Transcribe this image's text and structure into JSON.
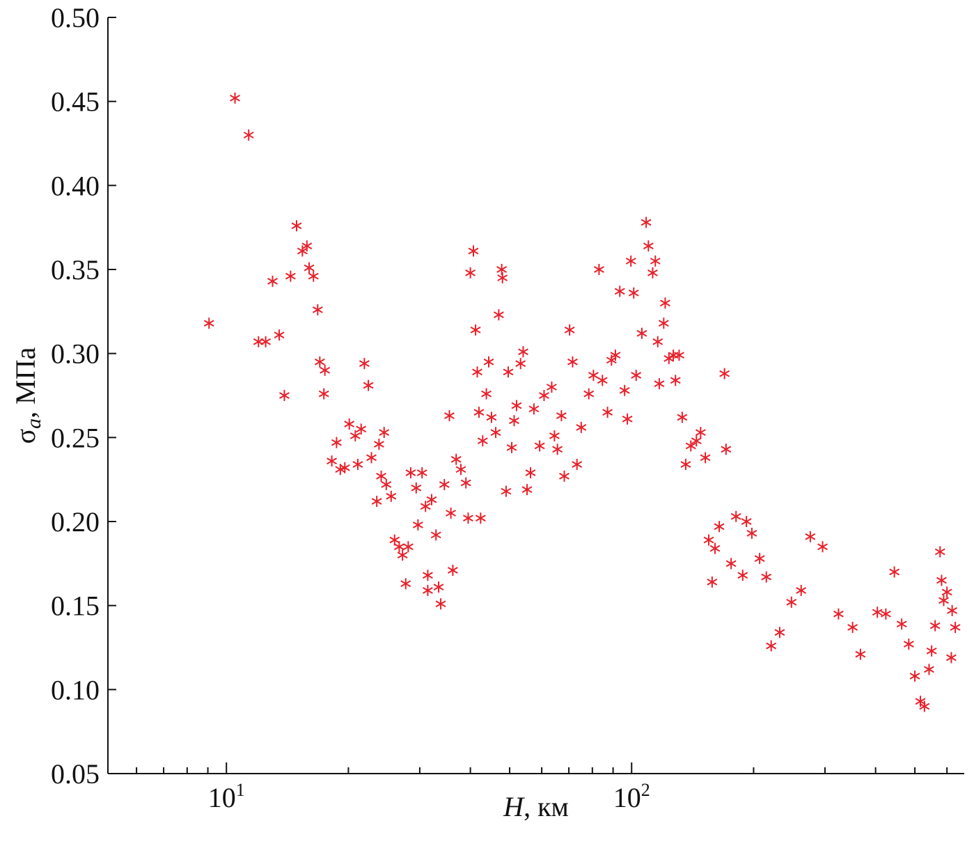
{
  "chart_data": {
    "type": "scatter",
    "x_label": {
      "symbol": "H",
      "rest": ", км"
    },
    "y_label": {
      "symbol": "σ",
      "sub": "a",
      "rest": ", МПа"
    },
    "log_x": true,
    "color": "#e8202a",
    "marker": "asterisk",
    "xlim": [
      5.1,
      662
    ],
    "ylim": [
      0.05,
      0.5
    ],
    "xticks": [
      {
        "value": 10,
        "label": "10",
        "exponent": "1"
      },
      {
        "value": 100,
        "label": "10",
        "exponent": "2"
      }
    ],
    "xminor_ticks": [
      6,
      7,
      8,
      9,
      20,
      30,
      40,
      50,
      60,
      70,
      80,
      90,
      200,
      300,
      400,
      500,
      600
    ],
    "yticks": [
      {
        "value": 0.05,
        "label": "0.05"
      },
      {
        "value": 0.1,
        "label": "0.10"
      },
      {
        "value": 0.15,
        "label": "0.15"
      },
      {
        "value": 0.2,
        "label": "0.20"
      },
      {
        "value": 0.25,
        "label": "0.25"
      },
      {
        "value": 0.3,
        "label": "0.30"
      },
      {
        "value": 0.35,
        "label": "0.35"
      },
      {
        "value": 0.4,
        "label": "0.40"
      },
      {
        "value": 0.45,
        "label": "0.45"
      },
      {
        "value": 0.5,
        "label": "0.50"
      }
    ],
    "x": [
      9.06,
      10.5,
      11.35,
      12.0,
      12.5,
      13.0,
      13.5,
      13.9,
      14.4,
      14.9,
      15.4,
      15.8,
      16.0,
      16.4,
      16.8,
      17.0,
      17.5,
      17.4,
      18.2,
      18.7,
      19.1,
      19.6,
      20.1,
      20.8,
      21.1,
      21.5,
      21.9,
      22.4,
      22.8,
      23.5,
      23.8,
      24.5,
      24.1,
      24.8,
      25.5,
      26.0,
      26.7,
      27.2,
      27.7,
      28.1,
      28.5,
      29.4,
      29.7,
      30.4,
      31.0,
      31.4,
      31.4,
      32.1,
      32.9,
      33.4,
      33.8,
      34.5,
      35.5,
      36.2,
      36.9,
      35.8,
      37.9,
      39.0,
      39.5,
      40.0,
      40.7,
      41.2,
      41.6,
      42.0,
      42.4,
      42.9,
      43.8,
      44.4,
      45.1,
      46.2,
      47.0,
      47.8,
      48.0,
      49.0,
      49.6,
      50.6,
      51.3,
      52.0,
      53.2,
      54.0,
      55.2,
      56.3,
      57.4,
      59.3,
      60.8,
      63.5,
      64.5,
      65.6,
      67.1,
      68.2,
      70.3,
      71.5,
      73.3,
      75.1,
      78.4,
      80.5,
      83.1,
      84.7,
      87.2,
      89.2,
      91.2,
      93.5,
      96.1,
      97.6,
      99.6,
      101.2,
      102.6,
      106,
      108.6,
      110,
      112.7,
      114.4,
      116,
      117,
      120,
      121,
      123.6,
      126.7,
      128.3,
      131,
      133.3,
      136,
      140,
      144.5,
      148,
      152,
      155,
      158,
      160.6,
      164.5,
      169.5,
      171,
      176,
      181,
      188,
      192,
      198,
      207,
      215,
      221,
      232,
      248,
      262,
      276,
      296,
      324,
      351,
      367,
      404,
      424,
      445,
      464,
      483,
      500,
      516,
      528,
      542,
      550,
      561,
      577,
      582,
      589,
      600,
      615,
      618,
      629
    ],
    "values": [
      0.318,
      0.452,
      0.43,
      0.307,
      0.307,
      0.343,
      0.311,
      0.275,
      0.346,
      0.376,
      0.361,
      0.364,
      0.351,
      0.346,
      0.326,
      0.295,
      0.29,
      0.276,
      0.236,
      0.247,
      0.231,
      0.232,
      0.258,
      0.251,
      0.234,
      0.255,
      0.294,
      0.281,
      0.238,
      0.212,
      0.246,
      0.253,
      0.227,
      0.222,
      0.215,
      0.189,
      0.185,
      0.18,
      0.163,
      0.185,
      0.229,
      0.22,
      0.198,
      0.229,
      0.209,
      0.168,
      0.159,
      0.213,
      0.192,
      0.161,
      0.151,
      0.222,
      0.263,
      0.171,
      0.237,
      0.205,
      0.231,
      0.223,
      0.202,
      0.348,
      0.361,
      0.314,
      0.289,
      0.265,
      0.202,
      0.248,
      0.276,
      0.295,
      0.262,
      0.253,
      0.323,
      0.35,
      0.345,
      0.218,
      0.289,
      0.244,
      0.26,
      0.269,
      0.294,
      0.301,
      0.219,
      0.229,
      0.267,
      0.245,
      0.275,
      0.28,
      0.251,
      0.243,
      0.263,
      0.227,
      0.314,
      0.295,
      0.234,
      0.256,
      0.276,
      0.287,
      0.35,
      0.284,
      0.265,
      0.296,
      0.299,
      0.337,
      0.278,
      0.261,
      0.355,
      0.336,
      0.287,
      0.312,
      0.378,
      0.364,
      0.348,
      0.355,
      0.307,
      0.282,
      0.318,
      0.33,
      0.297,
      0.299,
      0.284,
      0.299,
      0.262,
      0.234,
      0.245,
      0.248,
      0.253,
      0.238,
      0.189,
      0.164,
      0.184,
      0.197,
      0.288,
      0.243,
      0.175,
      0.203,
      0.168,
      0.2,
      0.193,
      0.178,
      0.167,
      0.126,
      0.134,
      0.152,
      0.159,
      0.191,
      0.185,
      0.145,
      0.137,
      0.121,
      0.146,
      0.145,
      0.17,
      0.139,
      0.127,
      0.108,
      0.093,
      0.09,
      0.112,
      0.123,
      0.138,
      0.182,
      0.165,
      0.153,
      0.158,
      0.119,
      0.147,
      0.137
    ]
  }
}
